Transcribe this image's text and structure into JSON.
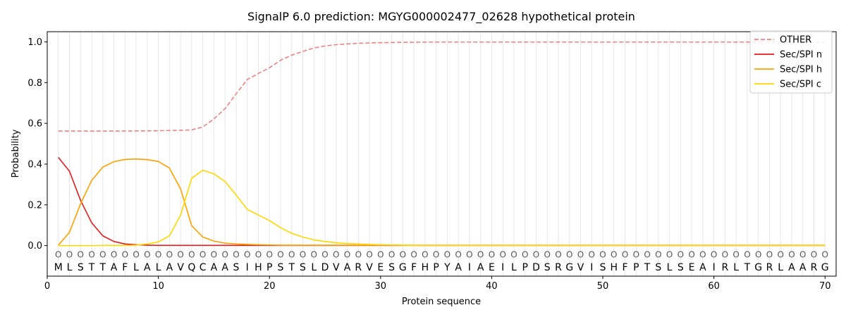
{
  "chart_data": {
    "type": "line",
    "title": "SignalP 6.0 prediction: MGYG000002477_02628 hypothetical protein",
    "xlabel": "Protein sequence",
    "ylabel": "Probability",
    "xlim": [
      0,
      71
    ],
    "ylim": [
      -0.15,
      1.05
    ],
    "xticks": [
      0,
      10,
      20,
      30,
      40,
      50,
      60,
      70
    ],
    "yticks": [
      0.0,
      0.2,
      0.4,
      0.6,
      0.8,
      1.0
    ],
    "xtick_labels": [
      "0",
      "10",
      "20",
      "30",
      "40",
      "50",
      "60",
      "70"
    ],
    "ytick_labels": [
      "0.0",
      "0.2",
      "0.4",
      "0.6",
      "0.8",
      "1.0"
    ],
    "grid": "vertical lines at each residue",
    "legend_position": "top-right",
    "sequence": [
      "M",
      "L",
      "S",
      "T",
      "T",
      "A",
      "F",
      "L",
      "A",
      "L",
      "A",
      "V",
      "Q",
      "C",
      "A",
      "A",
      "S",
      "I",
      "H",
      "P",
      "S",
      "T",
      "S",
      "L",
      "D",
      "V",
      "A",
      "R",
      "V",
      "E",
      "S",
      "G",
      "F",
      "H",
      "P",
      "Y",
      "A",
      "I",
      "A",
      "E",
      "I",
      "L",
      "P",
      "D",
      "S",
      "R",
      "G",
      "V",
      "I",
      "S",
      "H",
      "F",
      "P",
      "T",
      "S",
      "L",
      "S",
      "E",
      "A",
      "I",
      "R",
      "L",
      "T",
      "G",
      "R",
      "L",
      "A",
      "A",
      "R",
      "G"
    ],
    "region_marker": "O",
    "series": [
      {
        "name": "OTHER",
        "color": "#f08080",
        "style": "dashed",
        "values": [
          0.562,
          0.562,
          0.562,
          0.562,
          0.562,
          0.562,
          0.562,
          0.563,
          0.563,
          0.564,
          0.565,
          0.566,
          0.568,
          0.582,
          0.622,
          0.672,
          0.745,
          0.815,
          0.845,
          0.873,
          0.91,
          0.935,
          0.953,
          0.97,
          0.98,
          0.986,
          0.99,
          0.993,
          0.995,
          0.996,
          0.997,
          0.998,
          0.998,
          0.999,
          0.999,
          0.999,
          0.999,
          0.999,
          0.999,
          0.999,
          0.999,
          0.999,
          0.999,
          0.999,
          0.999,
          0.999,
          0.999,
          0.999,
          0.999,
          0.999,
          0.999,
          0.999,
          0.999,
          0.999,
          0.999,
          0.999,
          0.999,
          0.999,
          0.999,
          0.999,
          0.999,
          0.999,
          0.999,
          0.999,
          0.999,
          0.999,
          0.999,
          0.999,
          0.999,
          0.999
        ]
      },
      {
        "name": "Sec/SPI n",
        "color": "#e41a1c",
        "style": "solid",
        "values": [
          0.433,
          0.365,
          0.222,
          0.112,
          0.048,
          0.02,
          0.008,
          0.004,
          0.002,
          0.001,
          0.001,
          0.001,
          0.001,
          0.001,
          0.001,
          0.001,
          0.001,
          0.001,
          0.001,
          0.001,
          0.001,
          0.001,
          0.001,
          0.001,
          0.001,
          0.001,
          0.001,
          0.001,
          0.001,
          0.001,
          0.001,
          0.001,
          0.001,
          0.001,
          0.001,
          0.001,
          0.001,
          0.001,
          0.001,
          0.001,
          0.001,
          0.001,
          0.001,
          0.001,
          0.001,
          0.001,
          0.001,
          0.001,
          0.001,
          0.001,
          0.001,
          0.001,
          0.001,
          0.001,
          0.001,
          0.001,
          0.001,
          0.001,
          0.001,
          0.001,
          0.001,
          0.001,
          0.001,
          0.001,
          0.001,
          0.001,
          0.001,
          0.001,
          0.001,
          0.001
        ]
      },
      {
        "name": "Sec/SPI h",
        "color": "#ff9f00",
        "style": "solid",
        "values": [
          0.002,
          0.065,
          0.205,
          0.32,
          0.385,
          0.412,
          0.423,
          0.425,
          0.422,
          0.413,
          0.38,
          0.278,
          0.098,
          0.042,
          0.022,
          0.012,
          0.008,
          0.006,
          0.004,
          0.003,
          0.002,
          0.002,
          0.002,
          0.002,
          0.002,
          0.002,
          0.002,
          0.002,
          0.002,
          0.002,
          0.002,
          0.002,
          0.002,
          0.002,
          0.002,
          0.002,
          0.002,
          0.002,
          0.002,
          0.002,
          0.002,
          0.002,
          0.002,
          0.002,
          0.002,
          0.002,
          0.002,
          0.002,
          0.002,
          0.002,
          0.002,
          0.002,
          0.002,
          0.002,
          0.002,
          0.002,
          0.002,
          0.002,
          0.002,
          0.002,
          0.002,
          0.002,
          0.002,
          0.002,
          0.002,
          0.002,
          0.002,
          0.002,
          0.002,
          0.002
        ]
      },
      {
        "name": "Sec/SPI c",
        "color": "#ffd700",
        "style": "solid",
        "values": [
          0.0,
          0.0,
          0.0,
          0.0,
          0.001,
          0.001,
          0.001,
          0.002,
          0.008,
          0.018,
          0.048,
          0.15,
          0.33,
          0.37,
          0.352,
          0.315,
          0.248,
          0.178,
          0.15,
          0.123,
          0.088,
          0.06,
          0.042,
          0.028,
          0.02,
          0.014,
          0.01,
          0.008,
          0.006,
          0.004,
          0.003,
          0.002,
          0.001,
          0.001,
          0.001,
          0.001,
          0.001,
          0.001,
          0.001,
          0.001,
          0.001,
          0.001,
          0.001,
          0.001,
          0.001,
          0.001,
          0.001,
          0.001,
          0.001,
          0.001,
          0.001,
          0.001,
          0.001,
          0.001,
          0.001,
          0.001,
          0.001,
          0.001,
          0.001,
          0.001,
          0.001,
          0.001,
          0.001,
          0.001,
          0.001,
          0.001,
          0.001,
          0.001,
          0.001,
          0.001
        ]
      }
    ]
  }
}
